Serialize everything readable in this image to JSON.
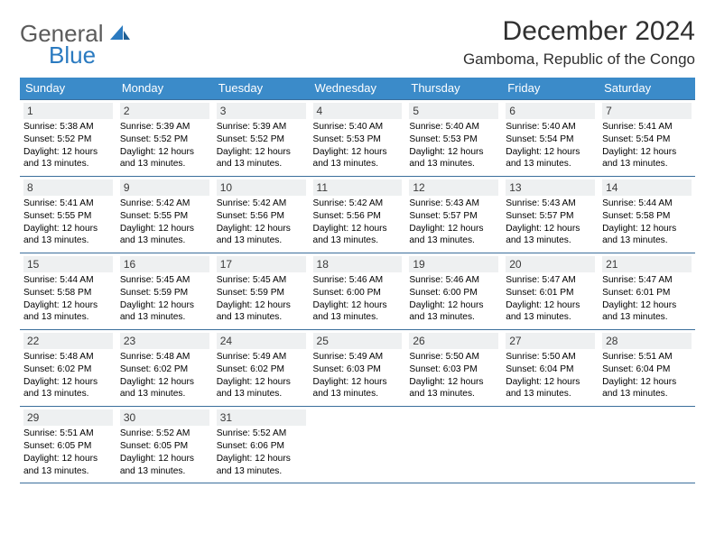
{
  "logo": {
    "word1": "General",
    "word2": "Blue"
  },
  "header": {
    "month_title": "December 2024",
    "location": "Gamboma, Republic of the Congo"
  },
  "colors": {
    "header_bg": "#3b8bc9",
    "header_text": "#ffffff",
    "rule": "#3b6f9c",
    "daynum_bg": "#eef0f1",
    "logo_general": "#5b5b5b",
    "logo_blue": "#2a7ac0"
  },
  "daynames": [
    "Sunday",
    "Monday",
    "Tuesday",
    "Wednesday",
    "Thursday",
    "Friday",
    "Saturday"
  ],
  "daylight_label": "Daylight: 12 hours and 13 minutes.",
  "days": [
    {
      "n": 1,
      "sr": "5:38 AM",
      "ss": "5:52 PM"
    },
    {
      "n": 2,
      "sr": "5:39 AM",
      "ss": "5:52 PM"
    },
    {
      "n": 3,
      "sr": "5:39 AM",
      "ss": "5:52 PM"
    },
    {
      "n": 4,
      "sr": "5:40 AM",
      "ss": "5:53 PM"
    },
    {
      "n": 5,
      "sr": "5:40 AM",
      "ss": "5:53 PM"
    },
    {
      "n": 6,
      "sr": "5:40 AM",
      "ss": "5:54 PM"
    },
    {
      "n": 7,
      "sr": "5:41 AM",
      "ss": "5:54 PM"
    },
    {
      "n": 8,
      "sr": "5:41 AM",
      "ss": "5:55 PM"
    },
    {
      "n": 9,
      "sr": "5:42 AM",
      "ss": "5:55 PM"
    },
    {
      "n": 10,
      "sr": "5:42 AM",
      "ss": "5:56 PM"
    },
    {
      "n": 11,
      "sr": "5:42 AM",
      "ss": "5:56 PM"
    },
    {
      "n": 12,
      "sr": "5:43 AM",
      "ss": "5:57 PM"
    },
    {
      "n": 13,
      "sr": "5:43 AM",
      "ss": "5:57 PM"
    },
    {
      "n": 14,
      "sr": "5:44 AM",
      "ss": "5:58 PM"
    },
    {
      "n": 15,
      "sr": "5:44 AM",
      "ss": "5:58 PM"
    },
    {
      "n": 16,
      "sr": "5:45 AM",
      "ss": "5:59 PM"
    },
    {
      "n": 17,
      "sr": "5:45 AM",
      "ss": "5:59 PM"
    },
    {
      "n": 18,
      "sr": "5:46 AM",
      "ss": "6:00 PM"
    },
    {
      "n": 19,
      "sr": "5:46 AM",
      "ss": "6:00 PM"
    },
    {
      "n": 20,
      "sr": "5:47 AM",
      "ss": "6:01 PM"
    },
    {
      "n": 21,
      "sr": "5:47 AM",
      "ss": "6:01 PM"
    },
    {
      "n": 22,
      "sr": "5:48 AM",
      "ss": "6:02 PM"
    },
    {
      "n": 23,
      "sr": "5:48 AM",
      "ss": "6:02 PM"
    },
    {
      "n": 24,
      "sr": "5:49 AM",
      "ss": "6:02 PM"
    },
    {
      "n": 25,
      "sr": "5:49 AM",
      "ss": "6:03 PM"
    },
    {
      "n": 26,
      "sr": "5:50 AM",
      "ss": "6:03 PM"
    },
    {
      "n": 27,
      "sr": "5:50 AM",
      "ss": "6:04 PM"
    },
    {
      "n": 28,
      "sr": "5:51 AM",
      "ss": "6:04 PM"
    },
    {
      "n": 29,
      "sr": "5:51 AM",
      "ss": "6:05 PM"
    },
    {
      "n": 30,
      "sr": "5:52 AM",
      "ss": "6:05 PM"
    },
    {
      "n": 31,
      "sr": "5:52 AM",
      "ss": "6:06 PM"
    }
  ]
}
